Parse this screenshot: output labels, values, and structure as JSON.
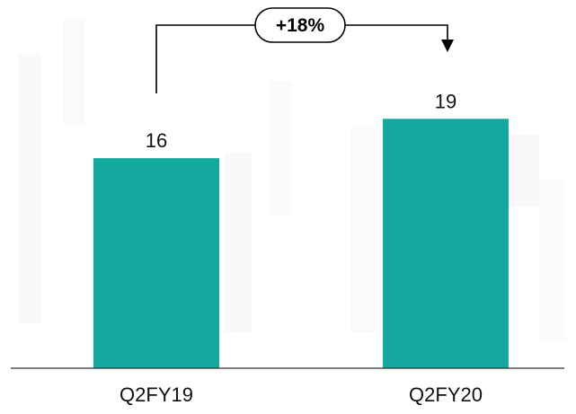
{
  "chart_data": {
    "type": "bar",
    "categories": [
      "Q2FY19",
      "Q2FY20"
    ],
    "values": [
      16,
      19
    ],
    "data_labels": [
      "16",
      "19"
    ],
    "title": "",
    "xlabel": "",
    "ylabel": "",
    "ylim": [
      0,
      26
    ],
    "grid": false,
    "legend": "none",
    "annotation": {
      "text": "+18%",
      "from_category": "Q2FY19",
      "to_category": "Q2FY20"
    },
    "colors": {
      "bar": "#13a89e",
      "axis": "#333333",
      "text": "#111111",
      "annotation": "#000000"
    }
  }
}
